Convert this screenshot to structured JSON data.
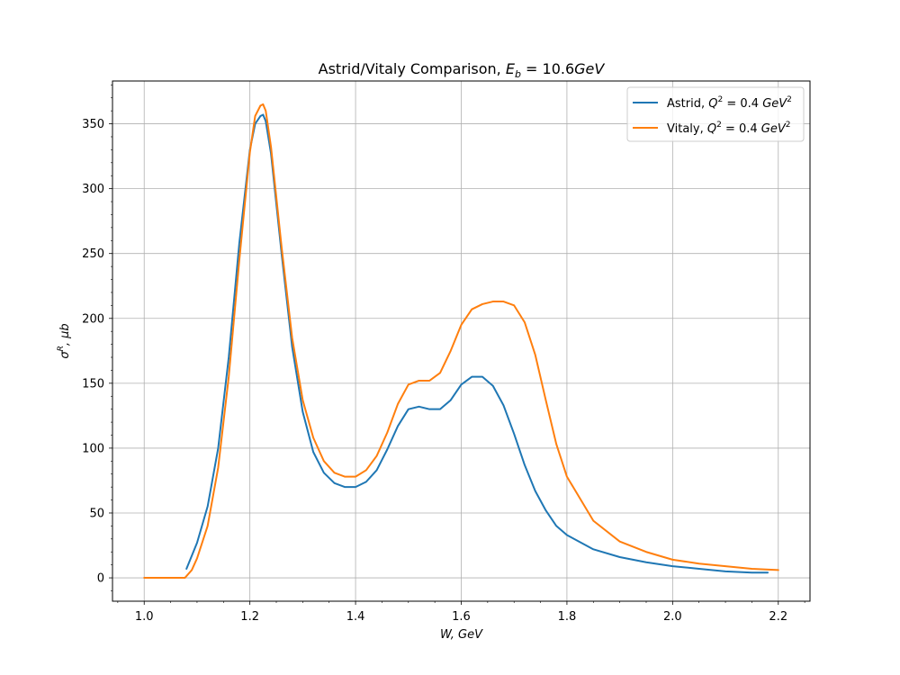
{
  "chart_data": {
    "type": "line",
    "title": "Astrid/Vitaly Comparison, E_b = 10.6GeV",
    "title_parts": {
      "text": "Astrid/Vitaly Comparison, ",
      "var": "E",
      "sub": "b",
      "rest": " = 10.6",
      "unit": "GeV"
    },
    "xlabel": "W, GeV",
    "xlabel_parts": {
      "var": "W",
      "rest": ", GeV"
    },
    "ylabel": "σ^R, μb",
    "ylabel_parts": {
      "var": "σ",
      "sup": "R",
      "rest": ", μb"
    },
    "xlim": [
      0.94,
      2.26
    ],
    "ylim": [
      -18,
      383
    ],
    "xticks": [
      "1.0",
      "1.2",
      "1.4",
      "1.6",
      "1.8",
      "2.0",
      "2.2"
    ],
    "yticks": [
      "0",
      "50",
      "100",
      "150",
      "200",
      "250",
      "300",
      "350"
    ],
    "grid": true,
    "legend_position": "top-right",
    "series": [
      {
        "name": "Astrid, Q^2 = 0.4 GeV^2",
        "label_parts": {
          "prefix": "Astrid, ",
          "var": "Q",
          "sup": "2",
          "mid": " = 0.4 ",
          "unit": "GeV",
          "unit_sup": "2"
        },
        "color": "#1f77b4",
        "x": [
          1.08,
          1.1,
          1.12,
          1.14,
          1.16,
          1.18,
          1.2,
          1.21,
          1.22,
          1.225,
          1.23,
          1.24,
          1.26,
          1.28,
          1.3,
          1.32,
          1.34,
          1.36,
          1.38,
          1.4,
          1.42,
          1.44,
          1.46,
          1.48,
          1.5,
          1.52,
          1.54,
          1.56,
          1.58,
          1.6,
          1.62,
          1.64,
          1.66,
          1.68,
          1.7,
          1.72,
          1.74,
          1.76,
          1.78,
          1.8,
          1.85,
          1.9,
          1.95,
          2.0,
          2.05,
          2.1,
          2.15,
          2.18
        ],
        "y": [
          7,
          27,
          55,
          100,
          170,
          258,
          330,
          350,
          356,
          357,
          352,
          327,
          250,
          178,
          128,
          97,
          81,
          73,
          70,
          70,
          74,
          83,
          99,
          117,
          130,
          132,
          130,
          130,
          137,
          149,
          155,
          155,
          148,
          133,
          111,
          87,
          67,
          52,
          40,
          33,
          22,
          16,
          12,
          9,
          7,
          5,
          4,
          4
        ]
      },
      {
        "name": "Vitaly, Q^2 = 0.4 GeV^2",
        "label_parts": {
          "prefix": "Vitaly, ",
          "var": "Q",
          "sup": "2",
          "mid": " = 0.4 ",
          "unit": "GeV",
          "unit_sup": "2"
        },
        "color": "#ff7f0e",
        "x": [
          1.0,
          1.02,
          1.04,
          1.06,
          1.077,
          1.09,
          1.1,
          1.12,
          1.14,
          1.16,
          1.18,
          1.2,
          1.21,
          1.22,
          1.225,
          1.23,
          1.24,
          1.26,
          1.28,
          1.3,
          1.32,
          1.34,
          1.36,
          1.38,
          1.4,
          1.42,
          1.44,
          1.46,
          1.48,
          1.5,
          1.52,
          1.54,
          1.56,
          1.58,
          1.6,
          1.62,
          1.64,
          1.66,
          1.68,
          1.7,
          1.72,
          1.74,
          1.76,
          1.78,
          1.8,
          1.85,
          1.9,
          1.95,
          2.0,
          2.05,
          2.1,
          2.15,
          2.2
        ],
        "y": [
          0,
          0,
          0,
          0,
          0,
          6,
          15,
          40,
          85,
          155,
          245,
          328,
          356,
          364,
          365,
          360,
          332,
          255,
          185,
          137,
          108,
          90,
          81,
          78,
          78,
          83,
          94,
          112,
          134,
          149,
          152,
          152,
          158,
          175,
          195,
          207,
          211,
          213,
          213,
          210,
          197,
          172,
          137,
          103,
          78,
          44,
          28,
          20,
          14,
          11,
          9,
          7,
          6
        ]
      }
    ]
  }
}
